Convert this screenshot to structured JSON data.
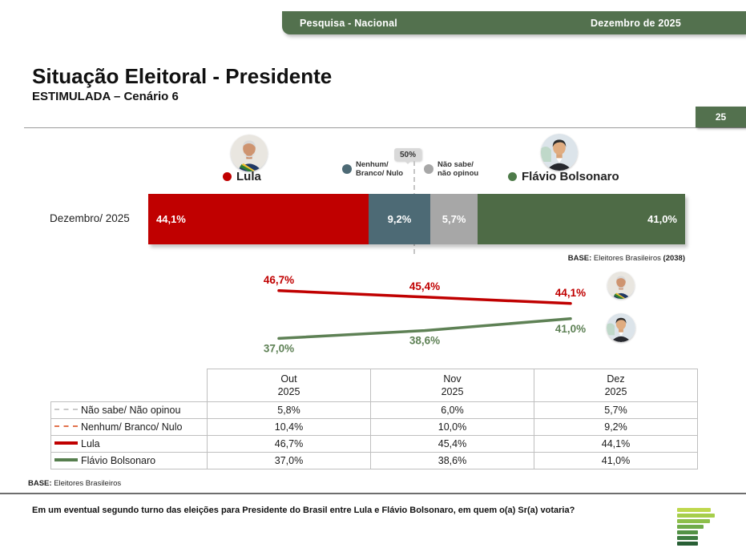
{
  "header": {
    "left_label": "Pesquisa - Nacional",
    "right_label": "Dezembro de 2025"
  },
  "title": "Situação Eleitoral - Presidente",
  "subtitle": "ESTIMULADA – Cenário 6",
  "page_number": "25",
  "colors": {
    "header_green": "#53714E",
    "lula_red": "#C00000",
    "nenhum_slate": "#4D6A75",
    "nao_sabe_gray": "#A7A7A7",
    "flavio_green": "#4E6B46",
    "trend_green": "#5E8155",
    "marker_orange": "#E2734D",
    "marker_gray": "#C9C9C9"
  },
  "legend": {
    "lula": {
      "label": "Lula",
      "dot_color": "#C00000"
    },
    "nenhum": {
      "line1": "Nenhum/",
      "line2": "Branco/ Nulo",
      "dot_color": "#4D6A75"
    },
    "nao_sabe": {
      "line1": "Não sabe/",
      "line2": "não opinou",
      "dot_color": "#A7A7A7"
    },
    "flavio": {
      "label": "Flávio Bolsonaro",
      "dot_color": "#4E7B49"
    }
  },
  "chart_data": [
    {
      "type": "bar",
      "orientation": "horizontal-stacked",
      "category": "Dezembro/ 2025",
      "xlim": [
        0,
        100
      ],
      "reference_line": {
        "value": 50,
        "label": "50%"
      },
      "segments": [
        {
          "name": "Lula",
          "value": 44.1,
          "label": "44,1%",
          "color": "#C00000",
          "label_align": "left"
        },
        {
          "name": "Nenhum/ Branco/ Nulo",
          "value": 9.2,
          "label": "9,2%",
          "color": "#4D6A75",
          "label_align": "center"
        },
        {
          "name": "Não sabe/ não opinou",
          "value": 5.7,
          "label": "5,7%",
          "color": "#A7A7A7",
          "label_align": "center"
        },
        {
          "name": "Flávio Bolsonaro",
          "value": 41.0,
          "label": "41,0%",
          "color": "#4E6B46",
          "label_align": "right"
        }
      ],
      "base_note": {
        "prefix": "BASE:",
        "text": " Eleitores Brasileiros ",
        "count": "(2038)"
      }
    },
    {
      "type": "line",
      "x": [
        "Out 2025",
        "Nov 2025",
        "Dez 2025"
      ],
      "grid": false,
      "series": [
        {
          "name": "Lula",
          "color": "#C00000",
          "values": [
            46.7,
            45.4,
            44.1
          ],
          "labels": [
            "46,7%",
            "45,4%",
            "44,1%"
          ],
          "label_position": "above"
        },
        {
          "name": "Flávio Bolsonaro",
          "color": "#5E8155",
          "values": [
            37.0,
            38.6,
            41.0
          ],
          "labels": [
            "37,0%",
            "38,6%",
            "41,0%"
          ],
          "label_position": "below"
        }
      ]
    },
    {
      "type": "table",
      "columns": [
        {
          "line1": "Out",
          "line2": "2025"
        },
        {
          "line1": "Nov",
          "line2": "2025"
        },
        {
          "line1": "Dez",
          "line2": "2025"
        }
      ],
      "rows": [
        {
          "label": "Não sabe/ Não opinou",
          "marker": "dashed-gray",
          "values": [
            "5,8%",
            "6,0%",
            "5,7%"
          ]
        },
        {
          "label": "Nenhum/ Branco/ Nulo",
          "marker": "dashed-orange",
          "values": [
            "10,4%",
            "10,0%",
            "9,2%"
          ]
        },
        {
          "label": "Lula",
          "marker": "solid-red",
          "values": [
            "46,7%",
            "45,4%",
            "44,1%"
          ]
        },
        {
          "label": "Flávio Bolsonaro",
          "marker": "solid-green",
          "values": [
            "37,0%",
            "38,6%",
            "41,0%"
          ]
        }
      ]
    }
  ],
  "footer": {
    "base_prefix": "BASE:",
    "base_text": " Eleitores Brasileiros",
    "question": "Em um eventual segundo turno das eleições para Presidente do Brasil entre Lula e Flávio Bolsonaro, em quem o(a) Sr(a) votaria?"
  },
  "logo_bars": [
    {
      "color": "#BFD84E",
      "width": 42
    },
    {
      "color": "#A6CE4B",
      "width": 47
    },
    {
      "color": "#8DBF4A",
      "width": 41
    },
    {
      "color": "#6FAB49",
      "width": 33
    },
    {
      "color": "#539245",
      "width": 26
    },
    {
      "color": "#3D7C40",
      "width": 26
    },
    {
      "color": "#285F35",
      "width": 26
    }
  ]
}
